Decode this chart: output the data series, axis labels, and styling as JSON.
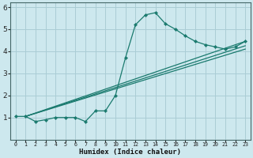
{
  "xlabel": "Humidex (Indice chaleur)",
  "bg_color": "#cde8ee",
  "grid_color": "#aacdd5",
  "line_color": "#1a7a6e",
  "xlim": [
    -0.5,
    23.5
  ],
  "ylim": [
    0,
    6.2
  ],
  "xticks": [
    0,
    1,
    2,
    3,
    4,
    5,
    6,
    7,
    8,
    9,
    10,
    11,
    12,
    13,
    14,
    15,
    16,
    17,
    18,
    19,
    20,
    21,
    22,
    23
  ],
  "yticks": [
    1,
    2,
    3,
    4,
    5,
    6
  ],
  "curve1_x": [
    0,
    1,
    2,
    3,
    4,
    5,
    6,
    7,
    8,
    9,
    10,
    11,
    12,
    13,
    14,
    15,
    16,
    17,
    18,
    19,
    20,
    21,
    22,
    23
  ],
  "curve1_y": [
    1.05,
    1.05,
    0.82,
    0.9,
    1.0,
    1.0,
    1.0,
    0.82,
    1.3,
    1.3,
    2.0,
    3.7,
    5.2,
    5.65,
    5.75,
    5.25,
    5.0,
    4.7,
    4.45,
    4.3,
    4.2,
    4.1,
    4.2,
    4.45
  ],
  "line2_x": [
    1,
    23
  ],
  "line2_y": [
    1.05,
    4.45
  ],
  "line3_x": [
    1,
    23
  ],
  "line3_y": [
    1.05,
    4.1
  ],
  "line4_x": [
    1,
    23
  ],
  "line4_y": [
    1.05,
    4.25
  ]
}
